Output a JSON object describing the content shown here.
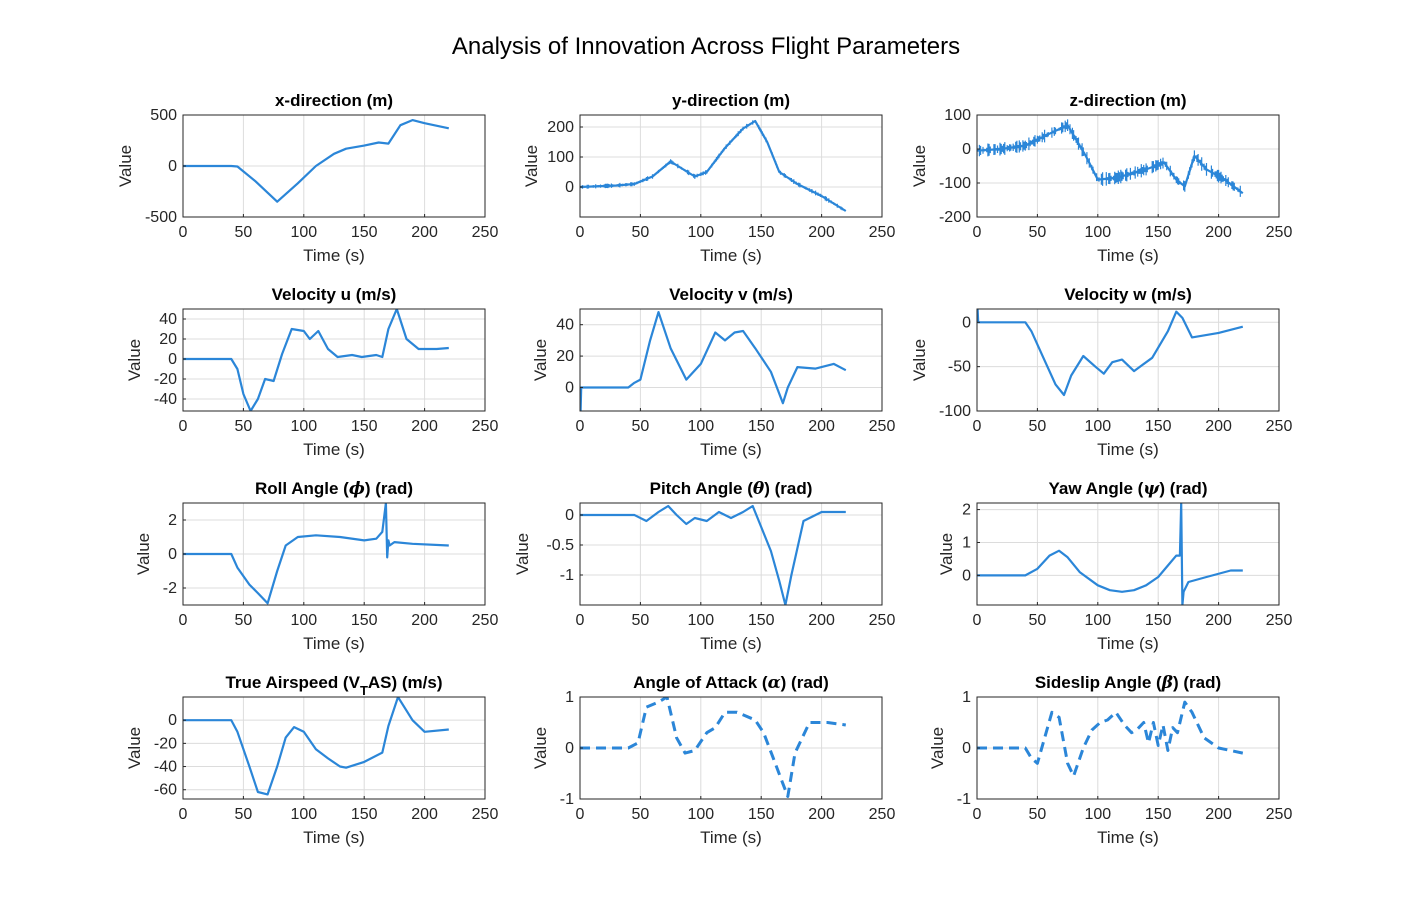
{
  "figure": {
    "title": "Analysis of Innovation Across Flight Parameters"
  },
  "colors": {
    "line": "#2b86d8",
    "axes": "#262626",
    "grid": "#dcdcdc"
  },
  "chart_data": [
    {
      "type": "line",
      "title": "x-direction (m)",
      "xlabel": "Time (s)",
      "ylabel": "Value",
      "xlim": [
        0,
        250
      ],
      "ylim": [
        -500,
        500
      ],
      "xticks": [
        0,
        50,
        100,
        150,
        200,
        250
      ],
      "yticks": [
        -500,
        0,
        500
      ],
      "grid": true,
      "line_style": "solid",
      "noise": 0,
      "series": [
        {
          "x": [
            0,
            40,
            45,
            60,
            78,
            95,
            110,
            125,
            135,
            150,
            162,
            170,
            180,
            190,
            200,
            220
          ],
          "y": [
            0,
            0,
            -5,
            -150,
            -350,
            -170,
            0,
            120,
            170,
            200,
            230,
            220,
            400,
            450,
            420,
            370
          ]
        }
      ]
    },
    {
      "type": "line",
      "title": "y-direction (m)",
      "xlabel": "Time (s)",
      "ylabel": "Value",
      "xlim": [
        0,
        250
      ],
      "ylim": [
        -100,
        240
      ],
      "xticks": [
        0,
        50,
        100,
        150,
        200,
        250
      ],
      "yticks": [
        0,
        100,
        200
      ],
      "grid": true,
      "line_style": "solid",
      "noise": 16,
      "series": [
        {
          "x": [
            0,
            30,
            45,
            60,
            75,
            85,
            95,
            105,
            120,
            135,
            145,
            155,
            165,
            180,
            200,
            220
          ],
          "y": [
            0,
            5,
            10,
            35,
            85,
            60,
            35,
            50,
            130,
            195,
            220,
            150,
            50,
            10,
            -30,
            -80
          ]
        }
      ]
    },
    {
      "type": "line",
      "title": "z-direction (m)",
      "xlabel": "Time (s)",
      "ylabel": "Value",
      "xlim": [
        0,
        250
      ],
      "ylim": [
        -200,
        100
      ],
      "xticks": [
        0,
        50,
        100,
        150,
        200,
        250
      ],
      "yticks": [
        -200,
        -100,
        0,
        100
      ],
      "grid": true,
      "line_style": "solid",
      "noise": 40,
      "series": [
        {
          "x": [
            0,
            20,
            40,
            60,
            75,
            90,
            100,
            115,
            140,
            155,
            165,
            172,
            180,
            190,
            205,
            220
          ],
          "y": [
            -5,
            0,
            10,
            45,
            70,
            -20,
            -90,
            -85,
            -60,
            -40,
            -90,
            -110,
            -20,
            -60,
            -90,
            -130
          ]
        }
      ]
    },
    {
      "type": "line",
      "title": "Velocity u (m/s)",
      "xlabel": "Time (s)",
      "ylabel": "Value",
      "xlim": [
        0,
        250
      ],
      "ylim": [
        -52,
        50
      ],
      "xticks": [
        0,
        50,
        100,
        150,
        200,
        250
      ],
      "yticks": [
        -40,
        -20,
        0,
        20,
        40
      ],
      "grid": true,
      "line_style": "solid",
      "noise": 0,
      "series": [
        {
          "x": [
            0,
            40,
            45,
            50,
            56,
            62,
            68,
            75,
            82,
            90,
            100,
            105,
            112,
            120,
            128,
            140,
            148,
            160,
            165,
            170,
            177,
            185,
            195,
            210,
            220
          ],
          "y": [
            0,
            0,
            -10,
            -35,
            -52,
            -40,
            -20,
            -22,
            5,
            30,
            28,
            20,
            28,
            10,
            2,
            4,
            2,
            4,
            2,
            30,
            50,
            20,
            10,
            10,
            11
          ]
        }
      ]
    },
    {
      "type": "line",
      "title": "Velocity v (m/s)",
      "xlabel": "Time (s)",
      "ylabel": "Value",
      "xlim": [
        0,
        250
      ],
      "ylim": [
        -15,
        50
      ],
      "xticks": [
        0,
        50,
        100,
        150,
        200,
        250
      ],
      "yticks": [
        0,
        20,
        40
      ],
      "grid": true,
      "line_style": "solid",
      "noise": 0,
      "series": [
        {
          "x": [
            0,
            0.5,
            1,
            40,
            45,
            50,
            58,
            65,
            75,
            88,
            100,
            112,
            120,
            128,
            135,
            145,
            158,
            168,
            172,
            180,
            195,
            210,
            220
          ],
          "y": [
            -15,
            -15,
            0,
            0,
            3,
            5,
            30,
            48,
            25,
            5,
            15,
            35,
            30,
            35,
            36,
            25,
            10,
            -10,
            0,
            13,
            12,
            15,
            11
          ]
        }
      ]
    },
    {
      "type": "line",
      "title": "Velocity w (m/s)",
      "xlabel": "Time (s)",
      "ylabel": "Value",
      "xlim": [
        0,
        250
      ],
      "ylim": [
        -100,
        15
      ],
      "xticks": [
        0,
        50,
        100,
        150,
        200,
        250
      ],
      "yticks": [
        -100,
        -50,
        0
      ],
      "grid": true,
      "line_style": "solid",
      "noise": 0,
      "series": [
        {
          "x": [
            0,
            0.5,
            1,
            40,
            45,
            55,
            65,
            72,
            78,
            88,
            98,
            105,
            112,
            120,
            130,
            145,
            158,
            165,
            170,
            178,
            200,
            220
          ],
          "y": [
            15,
            15,
            0,
            0,
            -10,
            -40,
            -70,
            -82,
            -60,
            -38,
            -50,
            -58,
            -45,
            -42,
            -55,
            -40,
            -10,
            12,
            5,
            -17,
            -12,
            -5
          ]
        }
      ]
    },
    {
      "type": "line",
      "title": "Roll Angle (ϕ) (rad)",
      "xlabel": "Time (s)",
      "ylabel": "Value",
      "xlim": [
        0,
        250
      ],
      "ylim": [
        -3,
        3
      ],
      "xticks": [
        0,
        50,
        100,
        150,
        200,
        250
      ],
      "yticks": [
        -2,
        0,
        2
      ],
      "grid": true,
      "line_style": "solid",
      "noise": 0,
      "series": [
        {
          "x": [
            0,
            40,
            45,
            55,
            62,
            70,
            78,
            85,
            95,
            110,
            130,
            150,
            160,
            165,
            168,
            169,
            170,
            171,
            175,
            190,
            220
          ],
          "y": [
            0,
            0,
            -0.8,
            -1.8,
            -2.3,
            -2.9,
            -1.0,
            0.5,
            1.0,
            1.1,
            1.0,
            0.8,
            0.9,
            1.3,
            3.0,
            -0.2,
            0.8,
            0.5,
            0.7,
            0.6,
            0.5
          ]
        }
      ]
    },
    {
      "type": "line",
      "title": "Pitch Angle (θ) (rad)",
      "xlabel": "Time (s)",
      "ylabel": "Value",
      "xlim": [
        0,
        250
      ],
      "ylim": [
        -1.5,
        0.2
      ],
      "xticks": [
        0,
        50,
        100,
        150,
        200,
        250
      ],
      "yticks": [
        -1,
        -0.5,
        0
      ],
      "grid": true,
      "line_style": "solid",
      "noise": 0,
      "series": [
        {
          "x": [
            0,
            40,
            45,
            55,
            65,
            73,
            80,
            88,
            95,
            105,
            115,
            125,
            135,
            143,
            150,
            158,
            165,
            170,
            175,
            185,
            200,
            220
          ],
          "y": [
            0,
            0,
            0,
            -0.1,
            0.05,
            0.15,
            0,
            -0.15,
            -0.05,
            -0.1,
            0.05,
            -0.05,
            0.05,
            0.15,
            -0.2,
            -0.6,
            -1.1,
            -1.5,
            -1.0,
            -0.1,
            0.05,
            0.05
          ]
        }
      ]
    },
    {
      "type": "line",
      "title": "Yaw Angle (ψ) (rad)",
      "xlabel": "Time (s)",
      "ylabel": "Value",
      "xlim": [
        0,
        250
      ],
      "ylim": [
        -0.9,
        2.2
      ],
      "xticks": [
        0,
        50,
        100,
        150,
        200,
        250
      ],
      "yticks": [
        0,
        1,
        2
      ],
      "grid": true,
      "line_style": "solid",
      "noise": 0,
      "series": [
        {
          "x": [
            0,
            40,
            50,
            60,
            68,
            75,
            85,
            100,
            110,
            120,
            130,
            140,
            150,
            158,
            165,
            168,
            169,
            170,
            171,
            175,
            190,
            210,
            220
          ],
          "y": [
            0,
            0,
            0.2,
            0.6,
            0.75,
            0.55,
            0.1,
            -0.3,
            -0.45,
            -0.5,
            -0.45,
            -0.3,
            -0.05,
            0.3,
            0.6,
            0.6,
            2.2,
            -0.9,
            -0.5,
            -0.2,
            -0.05,
            0.15,
            0.15
          ]
        }
      ]
    },
    {
      "type": "line",
      "title": "True Airspeed (VTAS) (m/s)",
      "xlabel": "Time (s)",
      "ylabel": "Value",
      "xlim": [
        0,
        250
      ],
      "ylim": [
        -68,
        20
      ],
      "xticks": [
        0,
        50,
        100,
        150,
        200,
        250
      ],
      "yticks": [
        -60,
        -40,
        -20,
        0
      ],
      "grid": true,
      "line_style": "solid",
      "noise": 0,
      "series": [
        {
          "x": [
            0,
            40,
            45,
            55,
            62,
            70,
            78,
            85,
            92,
            100,
            110,
            120,
            130,
            135,
            150,
            165,
            170,
            178,
            190,
            200,
            220
          ],
          "y": [
            0,
            0,
            -10,
            -40,
            -62,
            -64,
            -40,
            -15,
            -6,
            -10,
            -25,
            -33,
            -40,
            -41,
            -36,
            -28,
            -5,
            20,
            0,
            -10,
            -8
          ]
        }
      ]
    },
    {
      "type": "line",
      "title": "Angle of Attack (α) (rad)",
      "xlabel": "Time (s)",
      "ylabel": "Value",
      "xlim": [
        0,
        250
      ],
      "ylim": [
        -1,
        1
      ],
      "xticks": [
        0,
        50,
        100,
        150,
        200,
        250
      ],
      "yticks": [
        -1,
        0,
        1
      ],
      "grid": true,
      "line_style": "dashed",
      "noise": 0,
      "series": [
        {
          "x": [
            0,
            40,
            48,
            55,
            65,
            72,
            80,
            87,
            95,
            105,
            112,
            120,
            130,
            145,
            152,
            160,
            168,
            172,
            178,
            190,
            205,
            220
          ],
          "y": [
            0,
            0,
            0.1,
            0.8,
            0.9,
            1.0,
            0.2,
            -0.1,
            -0.05,
            0.3,
            0.4,
            0.7,
            0.7,
            0.55,
            0.3,
            -0.2,
            -0.7,
            -0.95,
            -0.1,
            0.5,
            0.5,
            0.45
          ]
        }
      ]
    },
    {
      "type": "line",
      "title": "Sideslip Angle (β) (rad)",
      "xlabel": "Time (s)",
      "ylabel": "Value",
      "xlim": [
        0,
        250
      ],
      "ylim": [
        -1,
        1
      ],
      "xticks": [
        0,
        50,
        100,
        150,
        200,
        250
      ],
      "yticks": [
        -1,
        0,
        1
      ],
      "grid": true,
      "line_style": "dashed",
      "noise": 0,
      "series": [
        {
          "x": [
            0,
            40,
            45,
            50,
            62,
            68,
            75,
            80,
            88,
            95,
            102,
            108,
            115,
            122,
            128,
            132,
            138,
            142,
            146,
            150,
            154,
            158,
            162,
            166,
            172,
            178,
            188,
            200,
            220
          ],
          "y": [
            0,
            0,
            -0.2,
            -0.3,
            0.7,
            0.6,
            -0.3,
            -0.55,
            0,
            0.35,
            0.5,
            0.55,
            0.7,
            0.45,
            0.3,
            0.35,
            0.5,
            0.1,
            0.5,
            0.05,
            0.45,
            -0.05,
            0.4,
            0.3,
            0.9,
            0.7,
            0.2,
            0.0,
            -0.1
          ]
        }
      ]
    }
  ]
}
